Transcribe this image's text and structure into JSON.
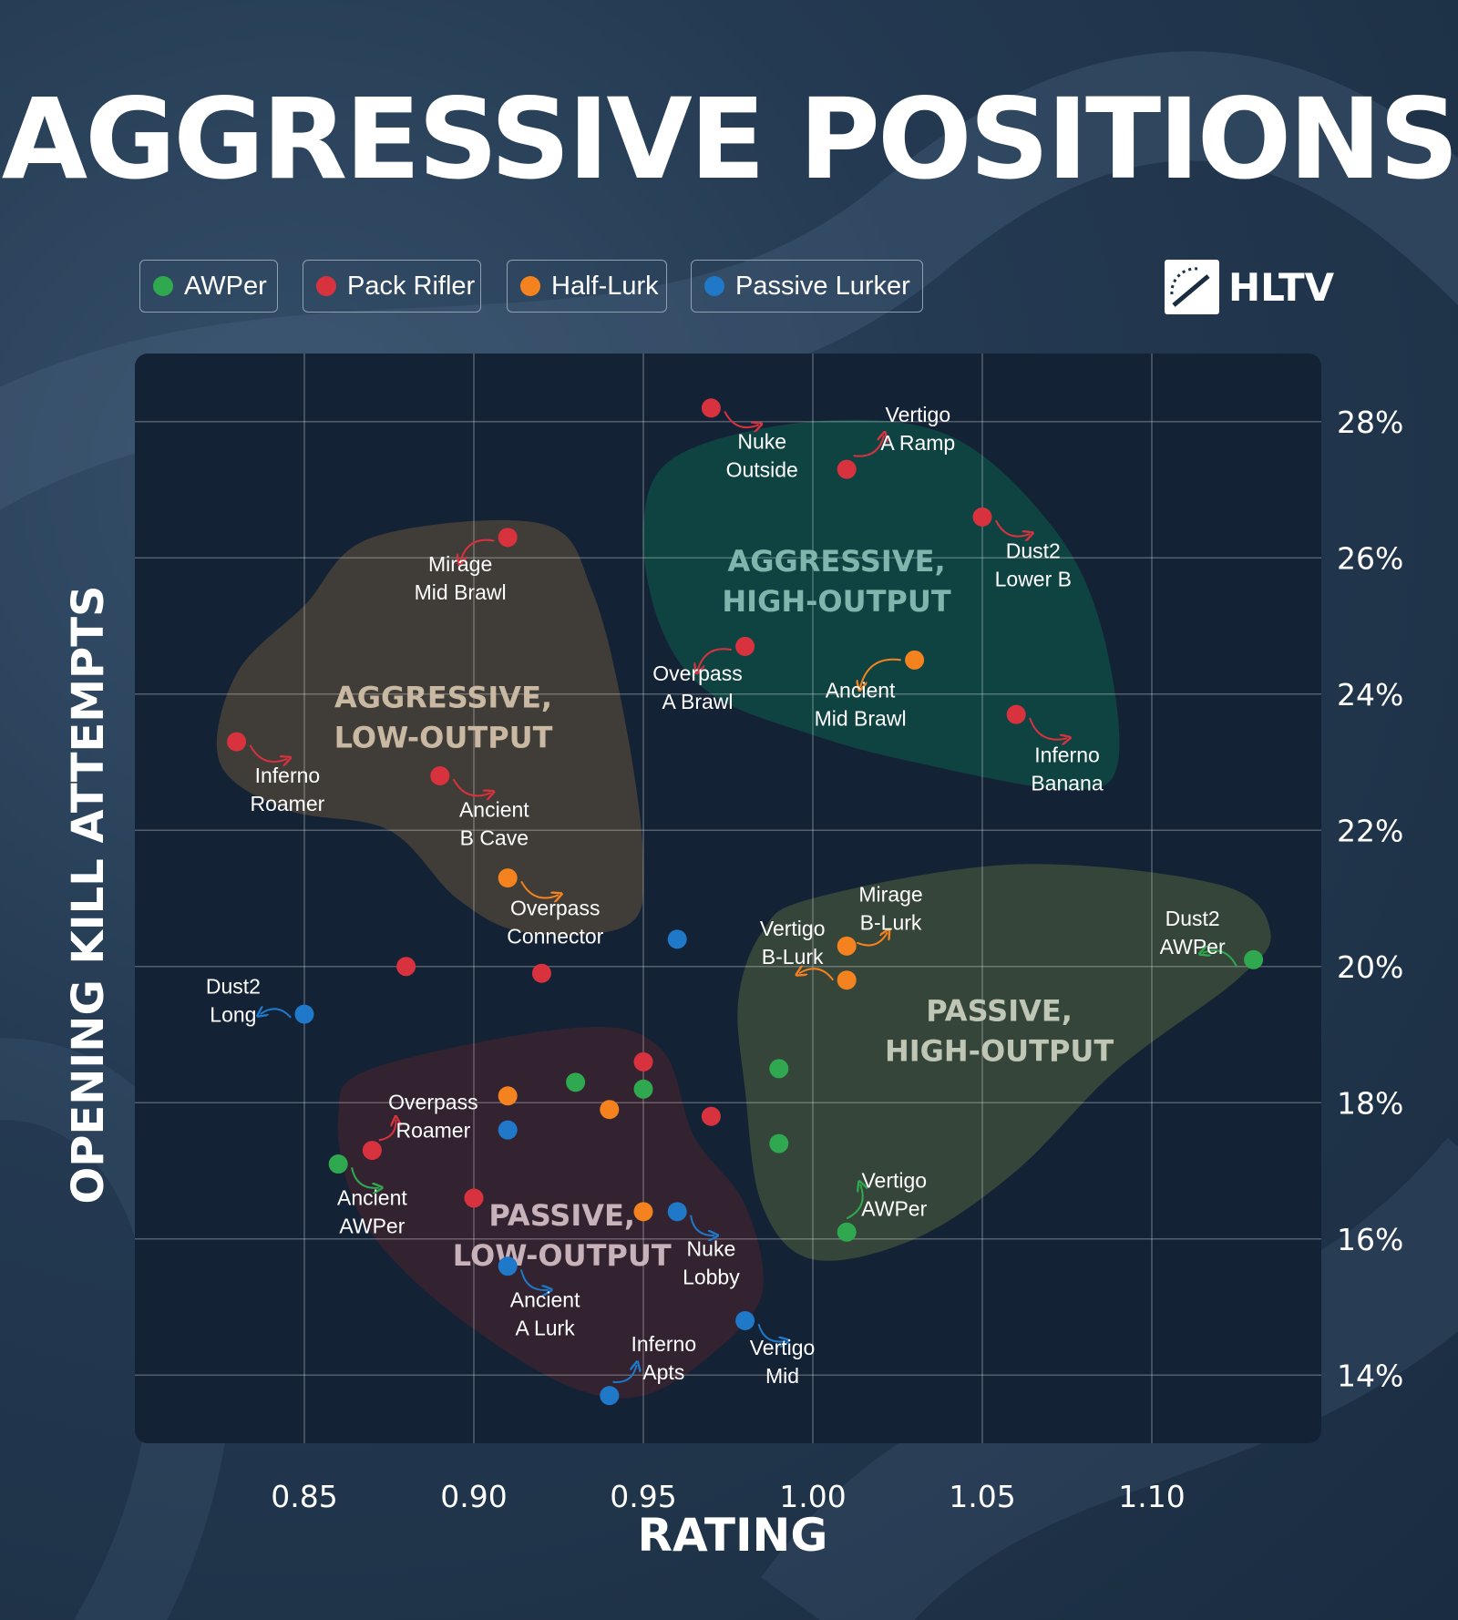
{
  "title": "AGGRESSIVE POSITIONS",
  "logo": {
    "text": "HLTV"
  },
  "colors": {
    "AWPer": "#2fa84f",
    "Pack Rifler": "#d8323f",
    "Half-Lurk": "#f4821f",
    "Passive Lurker": "#1f78c8",
    "plot_bg": "#142236",
    "region_aggr_low": "#4a4238",
    "region_aggr_high": "#0f4a45",
    "region_pass_high": "#3d4d3b",
    "region_pass_low": "#3a2330"
  },
  "legend": [
    {
      "label": "AWPer",
      "role": "AWPer"
    },
    {
      "label": "Pack Rifler",
      "role": "Pack Rifler"
    },
    {
      "label": "Half-Lurk",
      "role": "Half-Lurk"
    },
    {
      "label": "Passive Lurker",
      "role": "Passive Lurker"
    }
  ],
  "chart_data": {
    "type": "scatter",
    "xlabel": "RATING",
    "ylabel": "OPENING KILL ATTEMPTS",
    "xlim": [
      0.8,
      1.15
    ],
    "ylim": [
      13.0,
      29.0
    ],
    "xticks": [
      0.85,
      0.9,
      0.95,
      1.0,
      1.05,
      1.1
    ],
    "xtick_labels": [
      "0.85",
      "0.90",
      "0.95",
      "1.00",
      "1.05",
      "1.10"
    ],
    "yticks": [
      14,
      16,
      18,
      20,
      22,
      24,
      26,
      28
    ],
    "ytick_labels": [
      "14%",
      "16%",
      "18%",
      "20%",
      "22%",
      "24%",
      "26%",
      "28%"
    ],
    "grid": true,
    "legend_position": "top-left",
    "regions": [
      {
        "label": [
          "AGGRESSIVE,",
          "LOW-OUTPUT"
        ],
        "fill": "region_aggr_low",
        "label_color": "#c9b8a2",
        "label_at": [
          0.891,
          23.8
        ],
        "outline": [
          [
            0.87,
            26.3
          ],
          [
            0.92,
            26.5
          ],
          [
            0.935,
            25.5
          ],
          [
            0.945,
            23.5
          ],
          [
            0.95,
            21.5
          ],
          [
            0.945,
            20.6
          ],
          [
            0.915,
            20.5
          ],
          [
            0.895,
            21.0
          ],
          [
            0.875,
            22.0
          ],
          [
            0.845,
            22.3
          ],
          [
            0.825,
            23.0
          ],
          [
            0.83,
            24.3
          ],
          [
            0.85,
            25.3
          ]
        ]
      },
      {
        "label": [
          "AGGRESSIVE,",
          "HIGH-OUTPUT"
        ],
        "fill": "region_aggr_high",
        "label_color": "#7fb5ad",
        "label_at": [
          1.007,
          25.8
        ],
        "outline": [
          [
            0.96,
            27.5
          ],
          [
            1.0,
            28.0
          ],
          [
            1.04,
            27.8
          ],
          [
            1.07,
            26.5
          ],
          [
            1.085,
            25.0
          ],
          [
            1.09,
            23.0
          ],
          [
            1.075,
            22.6
          ],
          [
            1.03,
            23.0
          ],
          [
            1.0,
            23.4
          ],
          [
            0.97,
            24.0
          ],
          [
            0.955,
            25.0
          ],
          [
            0.95,
            26.5
          ]
        ]
      },
      {
        "label": [
          "PASSIVE,",
          "HIGH-OUTPUT"
        ],
        "fill": "region_pass_high",
        "label_color": "#c0c6b5",
        "label_at": [
          1.055,
          19.2
        ],
        "outline": [
          [
            1.0,
            21.0
          ],
          [
            1.06,
            21.5
          ],
          [
            1.12,
            21.2
          ],
          [
            1.135,
            20.5
          ],
          [
            1.125,
            19.8
          ],
          [
            1.09,
            18.5
          ],
          [
            1.06,
            17.0
          ],
          [
            1.03,
            16.0
          ],
          [
            1.0,
            15.7
          ],
          [
            0.985,
            16.5
          ],
          [
            0.98,
            18.2
          ],
          [
            0.978,
            19.5
          ],
          [
            0.985,
            20.5
          ]
        ]
      },
      {
        "label": [
          "PASSIVE,",
          "LOW-OUTPUT"
        ],
        "fill": "region_pass_low",
        "label_color": "#c8b2ba",
        "label_at": [
          0.926,
          16.2
        ],
        "outline": [
          [
            0.87,
            18.5
          ],
          [
            0.93,
            19.1
          ],
          [
            0.955,
            18.8
          ],
          [
            0.965,
            17.5
          ],
          [
            0.98,
            16.5
          ],
          [
            0.985,
            15.2
          ],
          [
            0.97,
            14.3
          ],
          [
            0.95,
            13.7
          ],
          [
            0.93,
            13.8
          ],
          [
            0.905,
            14.5
          ],
          [
            0.88,
            15.5
          ],
          [
            0.865,
            16.5
          ],
          [
            0.86,
            17.8
          ]
        ]
      }
    ],
    "series": [
      {
        "name": "AWPer",
        "points": [
          {
            "x": 1.13,
            "y": 20.1,
            "label": [
              "Dust2",
              "AWPer"
            ],
            "label_at": [
              1.112,
              20.6
            ],
            "arrow": [
              [
                1.125,
                20.0
              ],
              [
                1.115,
                20.2
              ]
            ]
          },
          {
            "x": 1.01,
            "y": 16.1,
            "label": [
              "Vertigo",
              "AWPer"
            ],
            "label_at": [
              1.024,
              16.75
            ],
            "arrow": [
              [
                1.01,
                16.3
              ],
              [
                1.014,
                16.8
              ]
            ]
          },
          {
            "x": 0.86,
            "y": 17.1,
            "label": [
              "Ancient",
              "AWPer"
            ],
            "label_at": [
              0.87,
              16.5
            ],
            "arrow": [
              [
                0.864,
                17.05
              ],
              [
                0.872,
                16.75
              ]
            ]
          },
          {
            "x": 0.93,
            "y": 18.3
          },
          {
            "x": 0.95,
            "y": 18.2
          },
          {
            "x": 0.99,
            "y": 18.5
          },
          {
            "x": 0.99,
            "y": 17.4
          }
        ]
      },
      {
        "name": "Pack Rifler",
        "points": [
          {
            "x": 0.97,
            "y": 28.2,
            "label": [
              "Nuke",
              "Outside"
            ],
            "label_at": [
              0.985,
              27.6
            ],
            "arrow": [
              [
                0.974,
                28.15
              ],
              [
                0.984,
                27.95
              ]
            ]
          },
          {
            "x": 1.01,
            "y": 27.3,
            "label": [
              "Vertigo",
              "A Ramp"
            ],
            "label_at": [
              1.031,
              28.0
            ],
            "arrow": [
              [
                1.012,
                27.5
              ],
              [
                1.021,
                27.8
              ]
            ]
          },
          {
            "x": 1.05,
            "y": 26.6,
            "label": [
              "Dust2",
              "Lower B"
            ],
            "label_at": [
              1.065,
              26.0
            ],
            "arrow": [
              [
                1.054,
                26.55
              ],
              [
                1.064,
                26.35
              ]
            ]
          },
          {
            "x": 0.91,
            "y": 26.3,
            "label": [
              "Mirage",
              "Mid Brawl"
            ],
            "label_at": [
              0.896,
              25.8
            ],
            "arrow": [
              [
                0.906,
                26.25
              ],
              [
                0.896,
                25.95
              ]
            ]
          },
          {
            "x": 0.98,
            "y": 24.7,
            "label": [
              "Overpass",
              "A Brawl"
            ],
            "label_at": [
              0.966,
              24.2
            ],
            "arrow": [
              [
                0.976,
                24.65
              ],
              [
                0.966,
                24.35
              ]
            ]
          },
          {
            "x": 1.06,
            "y": 23.7,
            "label": [
              "Inferno",
              "Banana"
            ],
            "label_at": [
              1.075,
              23.0
            ],
            "arrow": [
              [
                1.064,
                23.65
              ],
              [
                1.075,
                23.35
              ]
            ]
          },
          {
            "x": 0.83,
            "y": 23.3,
            "label": [
              "Inferno",
              "Roamer"
            ],
            "label_at": [
              0.845,
              22.7
            ],
            "arrow": [
              [
                0.834,
                23.25
              ],
              [
                0.845,
                23.05
              ]
            ]
          },
          {
            "x": 0.89,
            "y": 22.8,
            "label": [
              "Ancient",
              "B Cave"
            ],
            "label_at": [
              0.906,
              22.2
            ],
            "arrow": [
              [
                0.894,
                22.75
              ],
              [
                0.905,
                22.55
              ]
            ]
          },
          {
            "x": 0.87,
            "y": 17.3,
            "label": [
              "Overpass",
              "Roamer"
            ],
            "label_at": [
              0.888,
              17.9
            ],
            "arrow": [
              [
                0.872,
                17.45
              ],
              [
                0.877,
                17.75
              ]
            ]
          },
          {
            "x": 0.88,
            "y": 20.0
          },
          {
            "x": 0.92,
            "y": 19.9
          },
          {
            "x": 0.95,
            "y": 18.6
          },
          {
            "x": 0.97,
            "y": 17.8
          },
          {
            "x": 0.9,
            "y": 16.6
          }
        ]
      },
      {
        "name": "Half-Lurk",
        "points": [
          {
            "x": 1.03,
            "y": 24.5,
            "label": [
              "Ancient",
              "Mid Brawl"
            ],
            "label_at": [
              1.014,
              23.95
            ],
            "arrow": [
              [
                1.026,
                24.5
              ],
              [
                1.014,
                24.1
              ]
            ]
          },
          {
            "x": 0.91,
            "y": 21.3,
            "label": [
              "Overpass",
              "Connector"
            ],
            "label_at": [
              0.924,
              20.75
            ],
            "arrow": [
              [
                0.914,
                21.25
              ],
              [
                0.925,
                21.05
              ]
            ]
          },
          {
            "x": 1.01,
            "y": 20.3,
            "label": [
              "Mirage",
              "B-Lurk"
            ],
            "label_at": [
              1.023,
              20.95
            ],
            "arrow": [
              [
                1.013,
                20.35
              ],
              [
                1.022,
                20.5
              ]
            ]
          },
          {
            "x": 1.01,
            "y": 19.8,
            "label": [
              "Vertigo",
              "B-Lurk"
            ],
            "label_at": [
              0.994,
              20.45
            ],
            "arrow": [
              [
                1.006,
                19.8
              ],
              [
                0.996,
                19.9
              ]
            ]
          },
          {
            "x": 0.91,
            "y": 18.1
          },
          {
            "x": 0.94,
            "y": 17.9
          },
          {
            "x": 0.95,
            "y": 16.4
          }
        ]
      },
      {
        "name": "Passive Lurker",
        "points": [
          {
            "x": 0.85,
            "y": 19.3,
            "label": [
              "Dust2",
              "Long"
            ],
            "label_at": [
              0.829,
              19.6
            ],
            "arrow": [
              [
                0.846,
                19.25
              ],
              [
                0.837,
                19.3
              ]
            ]
          },
          {
            "x": 0.96,
            "y": 16.4,
            "label": [
              "Nuke",
              "Lobby"
            ],
            "label_at": [
              0.97,
              15.75
            ],
            "arrow": [
              [
                0.964,
                16.35
              ],
              [
                0.971,
                16.05
              ]
            ]
          },
          {
            "x": 0.91,
            "y": 15.6,
            "label": [
              "Ancient",
              "A Lurk"
            ],
            "label_at": [
              0.921,
              15.0
            ],
            "arrow": [
              [
                0.914,
                15.55
              ],
              [
                0.922,
                15.25
              ]
            ]
          },
          {
            "x": 0.98,
            "y": 14.8,
            "label": [
              "Vertigo",
              "Mid"
            ],
            "label_at": [
              0.991,
              14.3
            ],
            "arrow": [
              [
                0.984,
                14.75
              ],
              [
                0.992,
                14.5
              ]
            ]
          },
          {
            "x": 0.94,
            "y": 13.7,
            "label": [
              "Inferno",
              "Apts"
            ],
            "label_at": [
              0.956,
              14.35
            ],
            "arrow": [
              [
                0.941,
                13.9
              ],
              [
                0.948,
                14.15
              ]
            ]
          },
          {
            "x": 0.96,
            "y": 20.4
          },
          {
            "x": 0.91,
            "y": 17.6
          }
        ]
      }
    ]
  }
}
